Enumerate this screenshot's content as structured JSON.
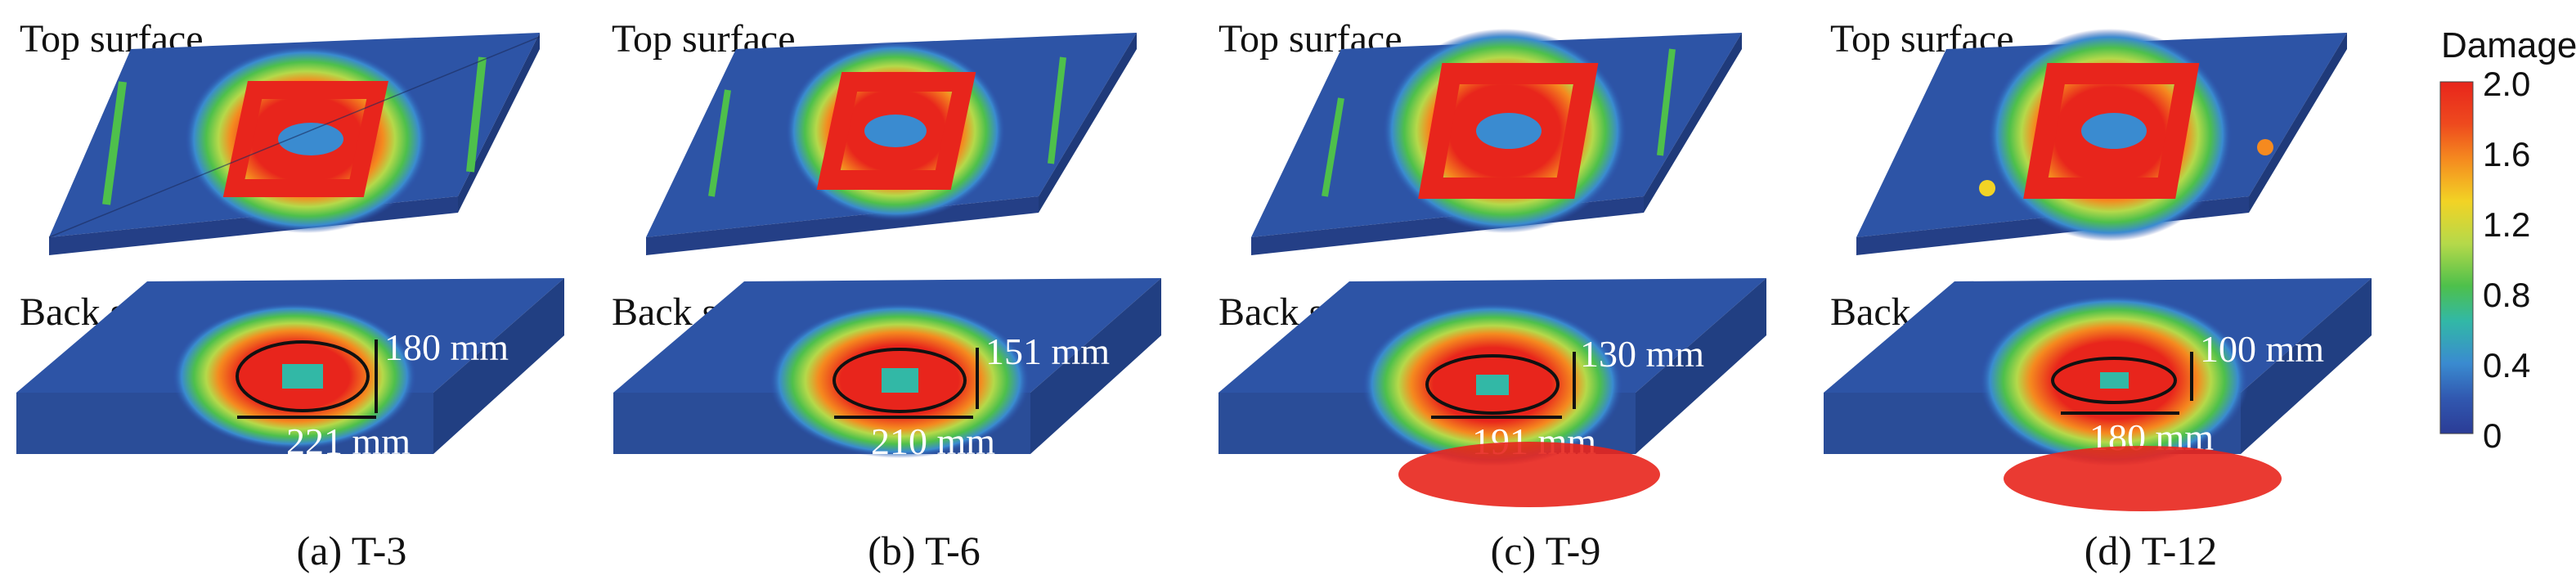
{
  "colorbar": {
    "title": "Damage",
    "ticks": [
      "2.0",
      "1.6",
      "1.2",
      "0.8",
      "0.4",
      "0"
    ],
    "colors": [
      "#e8251c",
      "#f58a1f",
      "#f2d325",
      "#b5d94a",
      "#4ec04b",
      "#32b8a6",
      "#3a8bd0",
      "#3158b0",
      "#2b3c96"
    ]
  },
  "panels": [
    {
      "top_label": "Top surface",
      "back_label": "Back surface",
      "dim_vertical": "180 mm",
      "dim_horizontal": "221 mm",
      "caption": "(a) T-3"
    },
    {
      "top_label": "Top surface",
      "back_label": "Back surface",
      "dim_vertical": "151 mm",
      "dim_horizontal": "210 mm",
      "caption": "(b) T-6"
    },
    {
      "top_label": "Top surface",
      "back_label": "Back surface",
      "dim_vertical": "130 mm",
      "dim_horizontal": "191 mm",
      "caption": "(c) T-9"
    },
    {
      "top_label": "Top surface",
      "back_label": "Back surface",
      "dim_vertical": "100 mm",
      "dim_horizontal": "180 mm",
      "caption": "(d) T-12"
    }
  ]
}
